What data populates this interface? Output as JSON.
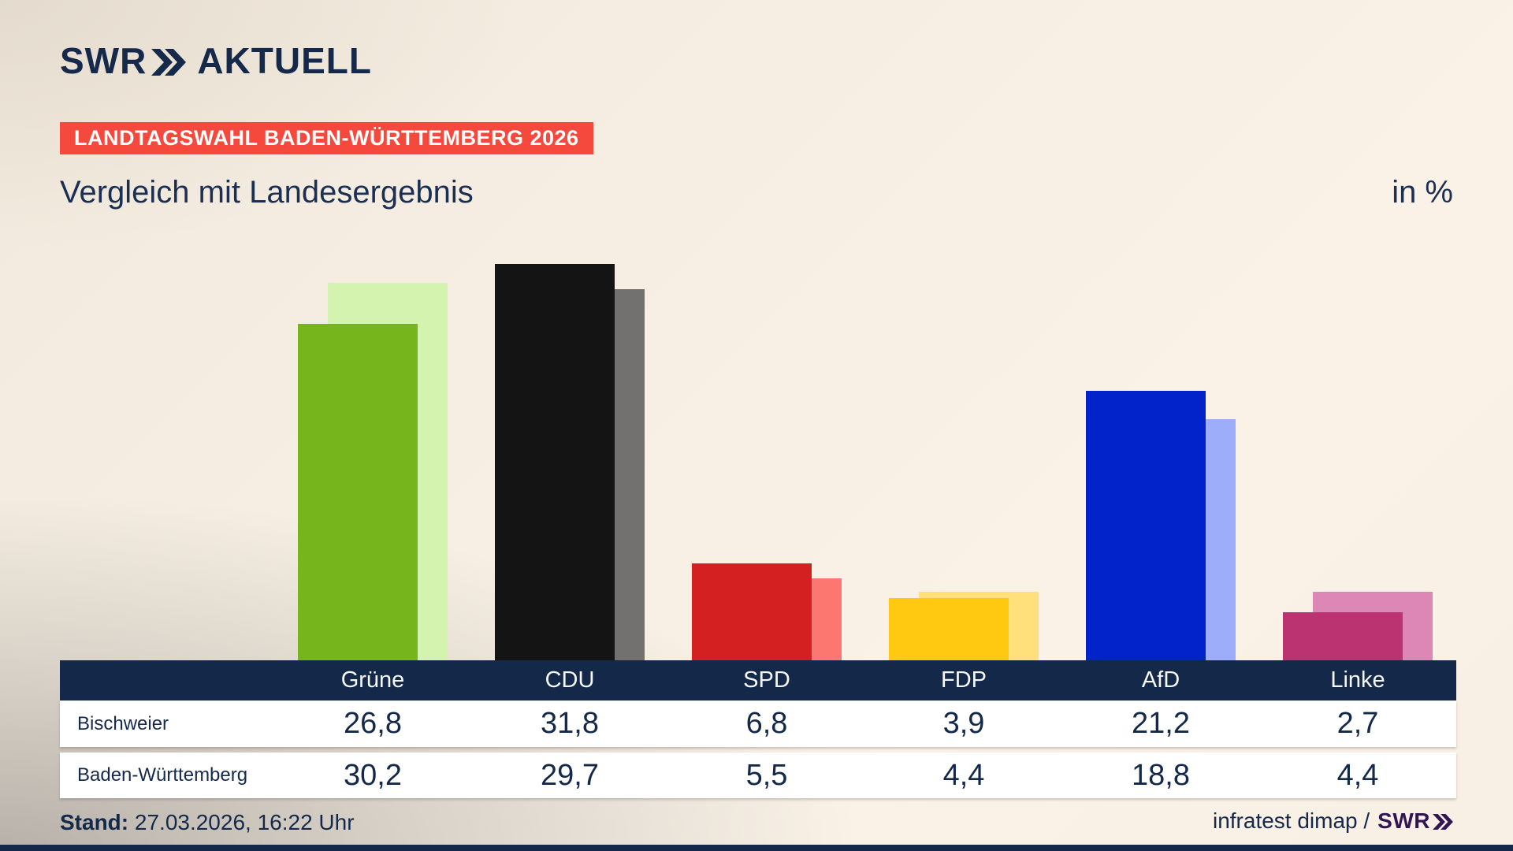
{
  "brand": {
    "swr": "SWR",
    "aktuell": "AKTUELL"
  },
  "badge": "LANDTAGSWAHL BADEN-WÜRTTEMBERG 2026",
  "title": "Vergleich mit Landesergebnis",
  "unit_label": "in %",
  "colors": {
    "navy": "#15294b",
    "badge_bg": "#f4493c",
    "table_header_bg": "#14294a",
    "footer_brand": "#321653"
  },
  "chart_data": {
    "type": "bar",
    "title": "Vergleich mit Landesergebnis",
    "unit": "%",
    "categories": [
      "Grüne",
      "CDU",
      "SPD",
      "FDP",
      "AfD",
      "Linke"
    ],
    "series": [
      {
        "name": "Bischweier",
        "values": [
          26.8,
          31.8,
          6.8,
          3.9,
          21.2,
          2.7
        ]
      },
      {
        "name": "Baden-Württemberg",
        "values": [
          30.2,
          29.7,
          5.5,
          4.4,
          18.8,
          4.4
        ]
      }
    ],
    "bar_colors": {
      "bischweier": [
        "#77b51c",
        "#141414",
        "#d42020",
        "#ffc912",
        "#0222ca",
        "#bb3371"
      ],
      "baden_wuerttemberg": [
        "#d3f3ae",
        "#737170",
        "#fb776f",
        "#ffe07a",
        "#9dadfa",
        "#dc87b6"
      ]
    },
    "legend_position": "table-below",
    "grid": false
  },
  "table": {
    "row1_label": "Bischweier",
    "row2_label": "Baden-Württemberg"
  },
  "footer": {
    "stand_label": "Stand:",
    "stand_value": "27.03.2026, 16:22 Uhr",
    "source_text": "infratest dimap /",
    "source_brand": "SWR"
  }
}
